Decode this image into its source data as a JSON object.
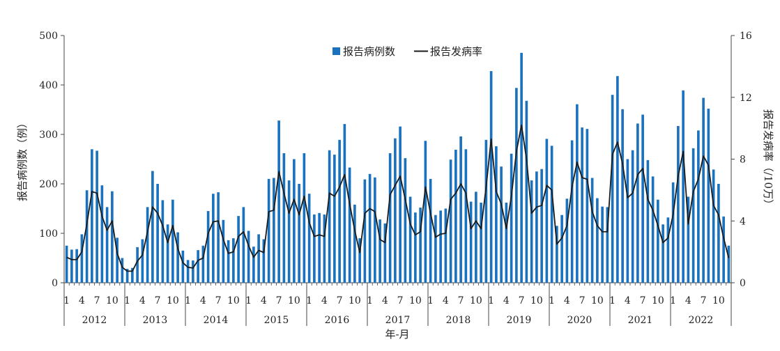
{
  "chart_data": {
    "type": "bar",
    "xlabel": "年-月",
    "ylabel_left": "报告病例数（例）",
    "ylabel_right": "报告发病率（/10万）",
    "ylim_left": [
      0,
      500
    ],
    "ylim_right": [
      0,
      16
    ],
    "yticks_left": [
      "0",
      "100",
      "200",
      "300",
      "400",
      "500"
    ],
    "yticks_right": [
      "0",
      "4",
      "8",
      "12",
      "16"
    ],
    "month_tick_labels": [
      "1",
      "4",
      "7",
      "10"
    ],
    "years": [
      "2012",
      "2013",
      "2014",
      "2015",
      "2016",
      "2017",
      "2018",
      "2019",
      "2020",
      "2021",
      "2022"
    ],
    "legend_position": "top-center",
    "grid": false,
    "colors": {
      "bar": "#1a72be",
      "line": "#1a1a1a"
    },
    "series": [
      {
        "name": "报告病例数",
        "type": "bar",
        "axis": "left",
        "values": [
          75,
          67,
          68,
          98,
          187,
          270,
          267,
          197,
          153,
          185,
          91,
          50,
          28,
          30,
          72,
          88,
          153,
          226,
          200,
          167,
          118,
          168,
          102,
          65,
          46,
          45,
          66,
          75,
          145,
          180,
          183,
          127,
          86,
          90,
          135,
          153,
          105,
          73,
          98,
          88,
          210,
          212,
          328,
          262,
          207,
          250,
          200,
          262,
          180,
          138,
          141,
          138,
          268,
          259,
          289,
          321,
          233,
          158,
          90,
          209,
          220,
          213,
          128,
          120,
          262,
          292,
          316,
          252,
          174,
          142,
          152,
          287,
          210,
          137,
          146,
          150,
          249,
          269,
          296,
          270,
          164,
          184,
          162,
          289,
          428,
          276,
          235,
          162,
          261,
          394,
          465,
          368,
          207,
          225,
          230,
          291,
          277,
          115,
          137,
          170,
          288,
          361,
          314,
          311,
          212,
          171,
          154,
          153,
          380,
          418,
          351,
          250,
          268,
          322,
          340,
          248,
          215,
          168,
          118,
          132,
          203,
          317,
          389,
          174,
          272,
          308,
          374,
          352,
          229,
          200,
          134,
          75
        ]
      },
      {
        "name": "报告发病率",
        "type": "line",
        "axis": "right",
        "values": [
          1.65,
          1.5,
          1.5,
          2.0,
          3.8,
          5.9,
          5.8,
          4.3,
          3.4,
          4.0,
          1.9,
          1.0,
          0.75,
          0.75,
          1.4,
          1.8,
          3.3,
          4.9,
          4.5,
          3.7,
          2.6,
          3.7,
          2.2,
          1.3,
          1.0,
          0.95,
          1.45,
          1.6,
          3.2,
          3.95,
          4.0,
          2.8,
          1.9,
          2.0,
          3.0,
          3.3,
          2.4,
          1.65,
          2.1,
          1.95,
          4.6,
          4.7,
          7.2,
          5.8,
          4.5,
          5.4,
          4.4,
          5.6,
          3.9,
          3.0,
          3.1,
          3.0,
          5.8,
          5.6,
          6.2,
          7.0,
          5.1,
          3.4,
          1.95,
          4.5,
          4.8,
          4.6,
          2.8,
          2.6,
          5.7,
          6.3,
          6.9,
          5.4,
          3.8,
          3.1,
          3.3,
          6.2,
          4.5,
          2.95,
          3.15,
          3.2,
          5.4,
          5.8,
          6.4,
          5.8,
          3.5,
          4.0,
          3.5,
          6.2,
          9.3,
          5.9,
          5.1,
          3.5,
          5.6,
          8.5,
          10.2,
          8.0,
          4.5,
          4.9,
          5.0,
          6.3,
          6.0,
          2.5,
          2.9,
          3.7,
          6.2,
          7.8,
          6.8,
          6.7,
          4.6,
          3.7,
          3.3,
          3.3,
          8.3,
          9.1,
          7.7,
          5.5,
          5.8,
          7.0,
          7.4,
          5.4,
          4.7,
          3.7,
          2.6,
          2.9,
          4.4,
          6.9,
          8.5,
          3.8,
          5.9,
          6.7,
          8.2,
          7.6,
          5.0,
          4.4,
          2.9,
          1.6
        ]
      }
    ]
  }
}
